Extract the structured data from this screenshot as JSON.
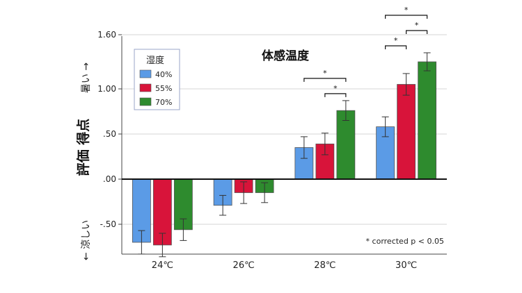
{
  "chart_data": {
    "type": "bar",
    "title": "体感温度",
    "ylabel": "評価 得点",
    "ylabel_top": "暑い →",
    "ylabel_bottom": "← 涼しい",
    "categories": [
      "24℃",
      "26℃",
      "28℃",
      "30℃"
    ],
    "ylim": [
      -0.85,
      1.65
    ],
    "yticks": [
      1.6,
      1.0,
      0.5,
      0.0,
      -0.5
    ],
    "ytick_labels": [
      "1.60",
      "1.00",
      ".50",
      ".00",
      "-.50"
    ],
    "grid": true,
    "legend_title": "湿度",
    "legend_position": "top-left",
    "series": [
      {
        "name": "40%",
        "color": "#5b9be6",
        "values": [
          -0.7,
          -0.29,
          0.35,
          0.58
        ],
        "errors": [
          0.13,
          0.11,
          0.12,
          0.11
        ]
      },
      {
        "name": "55%",
        "color": "#d8143a",
        "values": [
          -0.73,
          -0.15,
          0.39,
          1.05
        ],
        "errors": [
          0.13,
          0.12,
          0.12,
          0.12
        ]
      },
      {
        "name": "70%",
        "color": "#2e8b2e",
        "values": [
          -0.56,
          -0.15,
          0.76,
          1.3
        ],
        "errors": [
          0.12,
          0.11,
          0.11,
          0.1
        ]
      }
    ],
    "significance": [
      {
        "category": 2,
        "from": 0,
        "to": 2,
        "label": "*"
      },
      {
        "category": 2,
        "from": 1,
        "to": 2,
        "label": "*"
      },
      {
        "category": 3,
        "from": 0,
        "to": 2,
        "label": "*"
      },
      {
        "category": 3,
        "from": 0,
        "to": 1,
        "label": "*"
      },
      {
        "category": 3,
        "from": 1,
        "to": 2,
        "label": "*"
      }
    ],
    "annotation": "* corrected p < 0.05"
  }
}
